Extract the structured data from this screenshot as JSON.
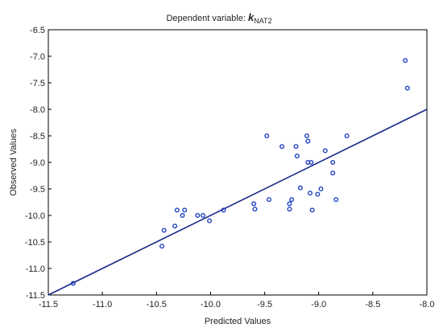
{
  "chart_data": {
    "type": "scatter",
    "title": "Dependent variable: ",
    "title_var": "k",
    "title_sub": "NAT2",
    "xlabel": "Predicted Values",
    "ylabel": "Observed Values",
    "xlim": [
      -11.5,
      -8.0
    ],
    "ylim": [
      -11.5,
      -6.5
    ],
    "xticks": [
      "-11.5",
      "-11.0",
      "-10.5",
      "-10.0",
      "-9.5",
      "-9.0",
      "-8.5",
      "-8.0"
    ],
    "yticks": [
      "-6.5",
      "-7.0",
      "-7.5",
      "-8.0",
      "-8.5",
      "-9.0",
      "-9.5",
      "-10.0",
      "-10.5",
      "-11.0",
      "-11.5"
    ],
    "grid": false,
    "legend": "none",
    "colors": {
      "points": "#1f3fbf",
      "fit_line": "#1a2a8a",
      "frame": "#000000"
    },
    "fit_line": {
      "x": [
        -11.5,
        -8.0
      ],
      "y": [
        -11.5,
        -8.0
      ]
    },
    "points": [
      {
        "x": -11.27,
        "y": -11.28
      },
      {
        "x": -10.45,
        "y": -10.58
      },
      {
        "x": -10.43,
        "y": -10.28
      },
      {
        "x": -10.33,
        "y": -10.2
      },
      {
        "x": -10.31,
        "y": -9.9
      },
      {
        "x": -10.26,
        "y": -10.0
      },
      {
        "x": -10.24,
        "y": -9.9
      },
      {
        "x": -10.12,
        "y": -10.0
      },
      {
        "x": -10.07,
        "y": -10.0
      },
      {
        "x": -10.01,
        "y": -10.1
      },
      {
        "x": -9.88,
        "y": -9.9
      },
      {
        "x": -9.6,
        "y": -9.78
      },
      {
        "x": -9.59,
        "y": -9.88
      },
      {
        "x": -9.48,
        "y": -8.5
      },
      {
        "x": -9.46,
        "y": -9.7
      },
      {
        "x": -9.34,
        "y": -8.7
      },
      {
        "x": -9.27,
        "y": -9.78
      },
      {
        "x": -9.27,
        "y": -9.88
      },
      {
        "x": -9.25,
        "y": -9.7
      },
      {
        "x": -9.21,
        "y": -8.7
      },
      {
        "x": -9.2,
        "y": -8.88
      },
      {
        "x": -9.17,
        "y": -9.48
      },
      {
        "x": -9.11,
        "y": -8.5
      },
      {
        "x": -9.1,
        "y": -8.6
      },
      {
        "x": -9.1,
        "y": -9.0
      },
      {
        "x": -9.08,
        "y": -9.58
      },
      {
        "x": -9.07,
        "y": -9.0
      },
      {
        "x": -9.06,
        "y": -9.9
      },
      {
        "x": -9.01,
        "y": -9.6
      },
      {
        "x": -8.98,
        "y": -9.5
      },
      {
        "x": -8.94,
        "y": -8.78
      },
      {
        "x": -8.87,
        "y": -9.0
      },
      {
        "x": -8.87,
        "y": -9.2
      },
      {
        "x": -8.84,
        "y": -9.7
      },
      {
        "x": -8.74,
        "y": -8.5
      },
      {
        "x": -8.2,
        "y": -7.08
      },
      {
        "x": -8.18,
        "y": -7.6
      }
    ]
  }
}
